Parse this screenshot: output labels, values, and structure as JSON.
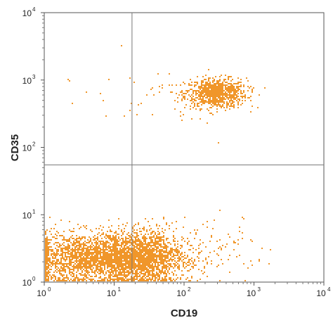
{
  "chart_data": {
    "type": "scatter",
    "title": "",
    "xlabel": "CD19",
    "ylabel": "CD35",
    "xscale": "log",
    "yscale": "log",
    "xlim": [
      1,
      10000
    ],
    "ylim": [
      1,
      10000
    ],
    "x_ticks": [
      {
        "base": "10",
        "exp": "0"
      },
      {
        "base": "10",
        "exp": "1"
      },
      {
        "base": "10",
        "exp": "2"
      },
      {
        "base": "10",
        "exp": "3"
      },
      {
        "base": "10",
        "exp": "4"
      }
    ],
    "y_ticks": [
      {
        "base": "10",
        "exp": "0"
      },
      {
        "base": "10",
        "exp": "1"
      },
      {
        "base": "10",
        "exp": "2"
      },
      {
        "base": "10",
        "exp": "3"
      },
      {
        "base": "10",
        "exp": "4"
      }
    ],
    "quadrant_gates": {
      "x": 18,
      "y": 55
    },
    "point_color": "#f0962a",
    "populations": [
      {
        "center_x": 280,
        "center_y": 620,
        "spread_x": 0.22,
        "spread_y": 0.11,
        "count": 900
      },
      {
        "center_x": 6,
        "center_y": 2.2,
        "spread_x": 0.55,
        "spread_y": 0.18,
        "count": 2600
      },
      {
        "center_x": 25,
        "center_y": 2.3,
        "spread_x": 0.3,
        "spread_y": 0.2,
        "count": 1500
      },
      {
        "center_x": 300,
        "center_y": 3,
        "spread_x": 0.35,
        "spread_y": 0.25,
        "count": 80
      },
      {
        "center_x": 50,
        "center_y": 500,
        "spread_x": 0.6,
        "spread_y": 0.25,
        "count": 40
      }
    ]
  }
}
